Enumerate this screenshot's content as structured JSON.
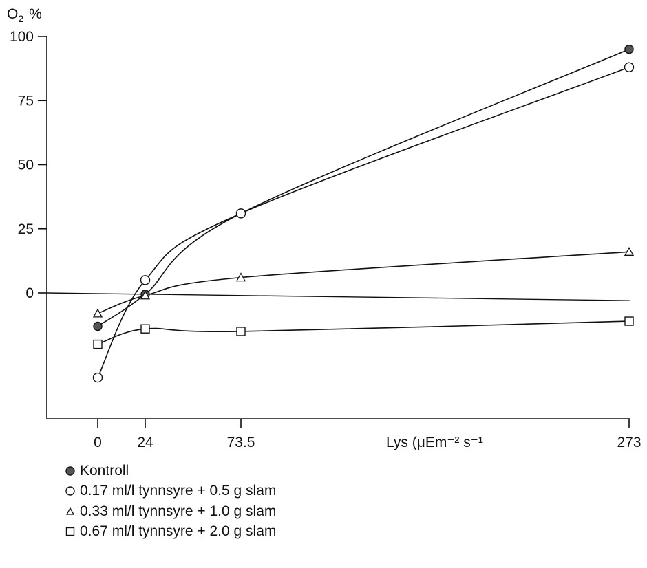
{
  "chart_data": {
    "type": "line",
    "y_title_main": "O",
    "y_title_sub": "2",
    "y_title_unit": "%",
    "x_title": "Lys (μEm⁻² s⁻¹",
    "x": [
      0,
      24,
      73.5,
      273
    ],
    "x_tick_labels": [
      "0",
      "24",
      "73.5",
      "273"
    ],
    "y_ticks": [
      0,
      25,
      50,
      75,
      100
    ],
    "y_tick_labels": [
      "0",
      "25",
      "50",
      "75",
      "100"
    ],
    "ylim": [
      -50,
      100
    ],
    "reference_line": {
      "y_start": 0,
      "y_end": -3
    },
    "grid": false,
    "legend_position": "bottom-left",
    "series": [
      {
        "name": "Kontroll",
        "marker": "filled-circle",
        "values": [
          -13,
          -0.5,
          31,
          95
        ]
      },
      {
        "name": "0.17 ml/l tynnsyre + 0.5 g slam",
        "marker": "open-circle",
        "values": [
          -33,
          5,
          31,
          88
        ]
      },
      {
        "name": "0.33 ml/l tynnsyre + 1.0 g slam",
        "marker": "open-triangle",
        "values": [
          -8,
          -1,
          6,
          16
        ]
      },
      {
        "name": "0.67 ml/l tynnsyre + 2.0 g slam",
        "marker": "open-square",
        "values": [
          -20,
          -14,
          -15,
          -11
        ]
      }
    ],
    "colors": {
      "line": "#111111",
      "filled_marker": "#555555"
    }
  }
}
